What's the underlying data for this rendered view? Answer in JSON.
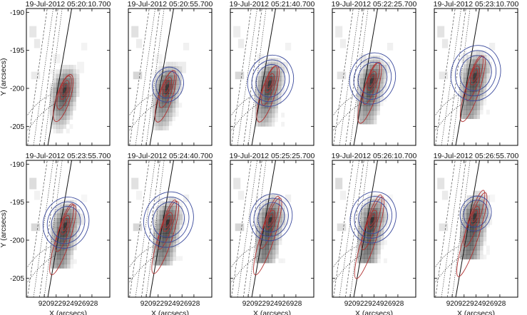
{
  "chart_data": {
    "type": "image-contour-grid",
    "rows": 2,
    "cols": 5,
    "xlabel": "X (arcsecs)",
    "ylabel": "Y (arcsecs)",
    "xlim": [
      917,
      931
    ],
    "ylim": [
      -207.5,
      -189.5
    ],
    "xticks": [
      920,
      922,
      924,
      926,
      928
    ],
    "yticks": [
      -190,
      -195,
      -200,
      -205
    ],
    "panels": [
      {
        "title": "19-Jul-2012 05:20:10.700",
        "peak": [
          923.4,
          -200.2
        ],
        "blue_levels": 0,
        "blue_size": 1.0,
        "red_tail": 0.2
      },
      {
        "title": "19-Jul-2012 05:20:55.700",
        "peak": [
          923.5,
          -199.8
        ],
        "blue_levels": 2,
        "blue_size": 1.0,
        "red_tail": 0.3
      },
      {
        "title": "19-Jul-2012 05:21:40.700",
        "peak": [
          923.6,
          -199.3
        ],
        "blue_levels": 3,
        "blue_size": 1.2,
        "red_tail": 0.4
      },
      {
        "title": "19-Jul-2012 05:22:25.700",
        "peak": [
          923.6,
          -199.0
        ],
        "blue_levels": 3,
        "blue_size": 1.2,
        "red_tail": 0.5
      },
      {
        "title": "19-Jul-2012 05:23:10.700",
        "peak": [
          923.8,
          -198.3
        ],
        "blue_levels": 3,
        "blue_size": 1.3,
        "red_tail": 0.6
      },
      {
        "title": "19-Jul-2012 05:23:55.700",
        "peak": [
          923.5,
          -198.0
        ],
        "blue_levels": 3,
        "blue_size": 1.2,
        "red_tail": 0.7
      },
      {
        "title": "19-Jul-2012 05:24:40.700",
        "peak": [
          923.6,
          -197.6
        ],
        "blue_levels": 3,
        "blue_size": 1.3,
        "red_tail": 0.75
      },
      {
        "title": "19-Jul-2012 05:25:25.700",
        "peak": [
          923.7,
          -197.3
        ],
        "blue_levels": 3,
        "blue_size": 1.1,
        "red_tail": 0.85
      },
      {
        "title": "19-Jul-2012 05:26:10.700",
        "peak": [
          923.7,
          -197.3
        ],
        "blue_levels": 3,
        "blue_size": 1.2,
        "red_tail": 0.95
      },
      {
        "title": "19-Jul-2012 05:26:55.700",
        "peak": [
          923.8,
          -196.8
        ],
        "blue_levels": 2,
        "blue_size": 1.0,
        "red_tail": 1.0
      }
    ],
    "colors": {
      "blue": "#3b4a9c",
      "red": "#b03030",
      "grid_line": "#333333"
    }
  }
}
